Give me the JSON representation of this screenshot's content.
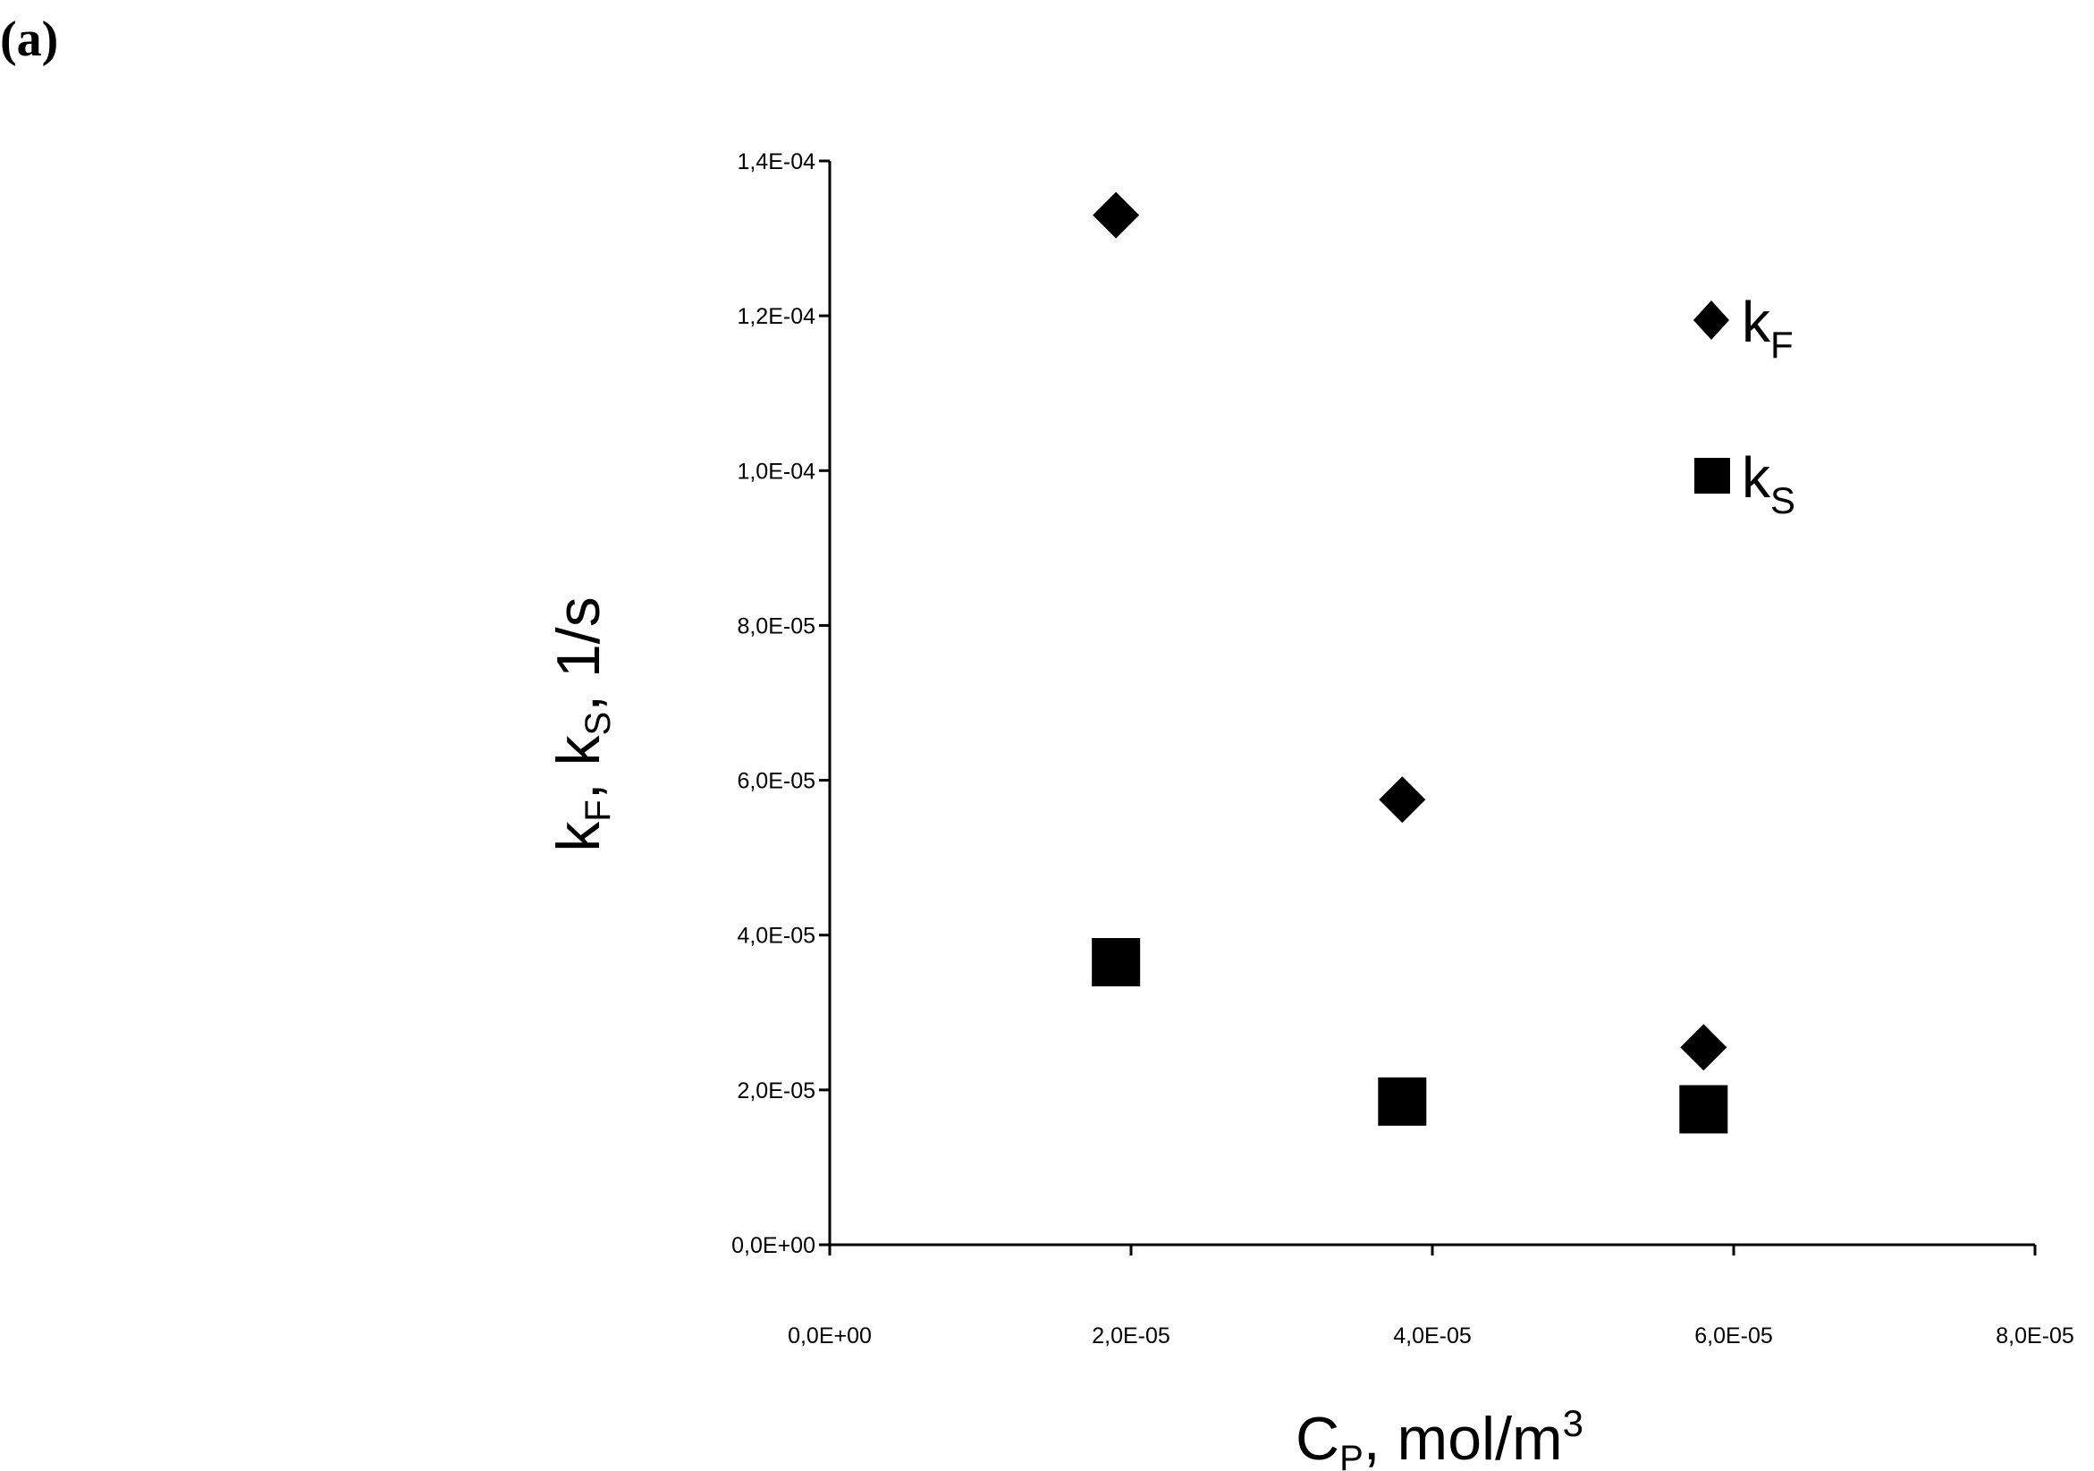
{
  "panel_label": "(a)",
  "chart_data": {
    "type": "scatter",
    "title": "",
    "xlabel": {
      "main": "C",
      "sub": "P",
      "rest": ", mol/m",
      "sup": "3"
    },
    "ylabel": {
      "k1": "k",
      "sub1": "F",
      "mid": ", k",
      "sub2": "S",
      "rest": ", 1/s"
    },
    "xlim": [
      0,
      8e-05
    ],
    "ylim": [
      0,
      0.00014
    ],
    "x_ticks": [
      0,
      2e-05,
      4e-05,
      6e-05,
      8e-05
    ],
    "x_tick_labels": [
      "0,0E+00",
      "2,0E-05",
      "4,0E-05",
      "6,0E-05",
      "8,0E-05"
    ],
    "y_ticks": [
      0,
      2e-05,
      4e-05,
      6e-05,
      8e-05,
      0.0001,
      0.00012,
      0.00014
    ],
    "y_tick_labels": [
      "0,0E+00",
      "2,0E-05",
      "4,0E-05",
      "6,0E-05",
      "8,0E-05",
      "1,0E-04",
      "1,2E-04",
      "1,4E-04"
    ],
    "grid": false,
    "legend_position": "top-right",
    "series": [
      {
        "name": "k_F",
        "label_main": "k",
        "label_sub": "F",
        "marker": "diamond",
        "color": "#000000",
        "x": [
          1.9e-05,
          3.8e-05,
          5.8e-05
        ],
        "y": [
          0.000133,
          5.75e-05,
          2.55e-05
        ]
      },
      {
        "name": "k_S",
        "label_main": "k",
        "label_sub": "S",
        "marker": "square",
        "color": "#000000",
        "x": [
          1.9e-05,
          3.8e-05,
          5.8e-05
        ],
        "y": [
          3.65e-05,
          1.85e-05,
          1.75e-05
        ]
      }
    ]
  }
}
